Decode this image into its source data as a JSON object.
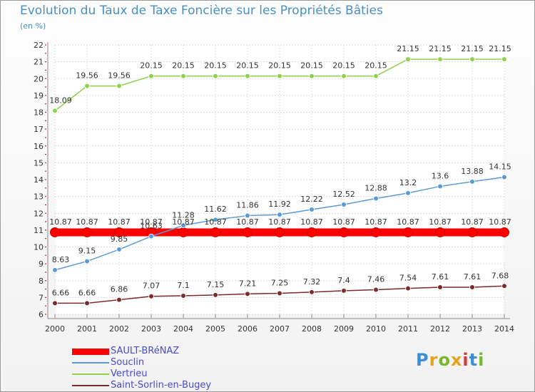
{
  "header": {
    "title": "Evolution du Taux de Taxe Foncière sur les Propriétés Bâties",
    "subtitle": "(en %)"
  },
  "logo": {
    "letters": [
      "P",
      "r",
      "o",
      "x",
      "i",
      "t",
      "i"
    ],
    "colors": [
      "#3a8fd6",
      "#e8a11f",
      "#76b82a",
      "#e8a11f",
      "#d63a3a",
      "#3a8fd6",
      "#76b82a"
    ]
  },
  "chart_data": {
    "type": "line",
    "x": [
      "2000",
      "2001",
      "2002",
      "2003",
      "2004",
      "2005",
      "2006",
      "2007",
      "2008",
      "2009",
      "2010",
      "2011",
      "2012",
      "2013",
      "2014"
    ],
    "ylim": [
      6,
      22
    ],
    "yticks": [
      "6",
      "7",
      "8",
      "9",
      "10",
      "11",
      "12",
      "13",
      "14",
      "15",
      "16",
      "17",
      "18",
      "19",
      "20",
      "21",
      "22"
    ],
    "grid": true,
    "legend_position": "bottom-left",
    "series": [
      {
        "name": "SAULT-BRéNAZ",
        "color": "#ff0000",
        "values": [
          10.87,
          10.87,
          10.87,
          10.87,
          10.87,
          10.87,
          10.87,
          10.87,
          10.87,
          10.87,
          10.87,
          10.87,
          10.87,
          10.87,
          10.87
        ],
        "labels": [
          "10.87",
          "10.87",
          "10.87",
          "10.87",
          "10.87",
          "10.87",
          "10.87",
          "10.87",
          "10.87",
          "10.87",
          "10.87",
          "10.87",
          "10.87",
          "10.87",
          "10.87"
        ]
      },
      {
        "name": "Souclin",
        "color": "#5b9bd5",
        "values": [
          8.63,
          9.15,
          9.85,
          10.63,
          11.28,
          11.62,
          11.86,
          11.92,
          12.22,
          12.52,
          12.88,
          13.2,
          13.6,
          13.88,
          14.15
        ],
        "labels": [
          "8.63",
          "9.15",
          "9.85",
          "10.63",
          "11.28",
          "11.62",
          "11.86",
          "11.92",
          "12.22",
          "12.52",
          "12.88",
          "13.2",
          "13.6",
          "13.88",
          "14.15"
        ]
      },
      {
        "name": "Vertrieu",
        "color": "#8fd14f",
        "values": [
          18.09,
          19.56,
          19.56,
          20.15,
          20.15,
          20.15,
          20.15,
          20.15,
          20.15,
          20.15,
          20.15,
          21.15,
          21.15,
          21.15,
          21.15
        ],
        "labels": [
          "18.09",
          "19.56",
          "19.56",
          "20.15",
          "20.15",
          "20.15",
          "20.15",
          "20.15",
          "20.15",
          "20.15",
          "20.15",
          "21.15",
          "21.15",
          "21.15",
          "21.15"
        ]
      },
      {
        "name": "Saint-Sorlin-en-Bugey",
        "color": "#7a2b2b",
        "values": [
          6.66,
          6.66,
          6.86,
          7.07,
          7.1,
          7.15,
          7.21,
          7.25,
          7.32,
          7.4,
          7.46,
          7.54,
          7.61,
          7.61,
          7.68
        ],
        "labels": [
          "6.66",
          "6.66",
          "6.86",
          "7.07",
          "7.1",
          "7.15",
          "7.21",
          "7.25",
          "7.32",
          "7.4",
          "7.46",
          "7.54",
          "7.61",
          "7.61",
          "7.68"
        ]
      }
    ]
  }
}
